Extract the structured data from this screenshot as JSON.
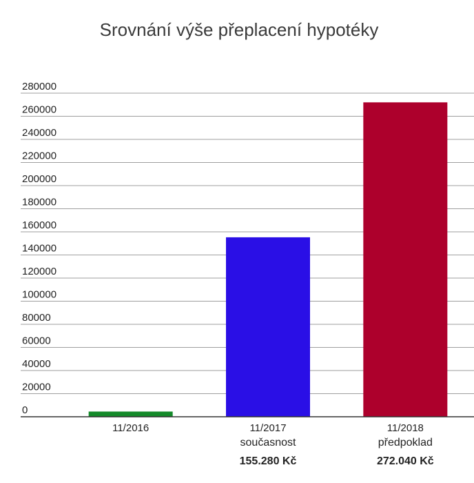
{
  "chart_data": {
    "type": "bar",
    "title": "Srovnání výše přeplacení hypotéky",
    "xlabel": "",
    "ylabel": "",
    "ylim": [
      0,
      280000
    ],
    "yticks": [
      0,
      20000,
      40000,
      60000,
      80000,
      100000,
      120000,
      140000,
      160000,
      180000,
      200000,
      220000,
      240000,
      260000,
      280000
    ],
    "grid": true,
    "legend": "none",
    "categories": [
      "11/2016",
      "11/2017",
      "11/2018"
    ],
    "sublabels": [
      "",
      "současnost",
      "předpoklad"
    ],
    "value_labels": [
      "",
      "155.280 Kč",
      "272.040 Kč"
    ],
    "values": [
      4500,
      155280,
      272040
    ],
    "colors": [
      "#148a2a",
      "#2a0fe6",
      "#ad002c"
    ]
  }
}
